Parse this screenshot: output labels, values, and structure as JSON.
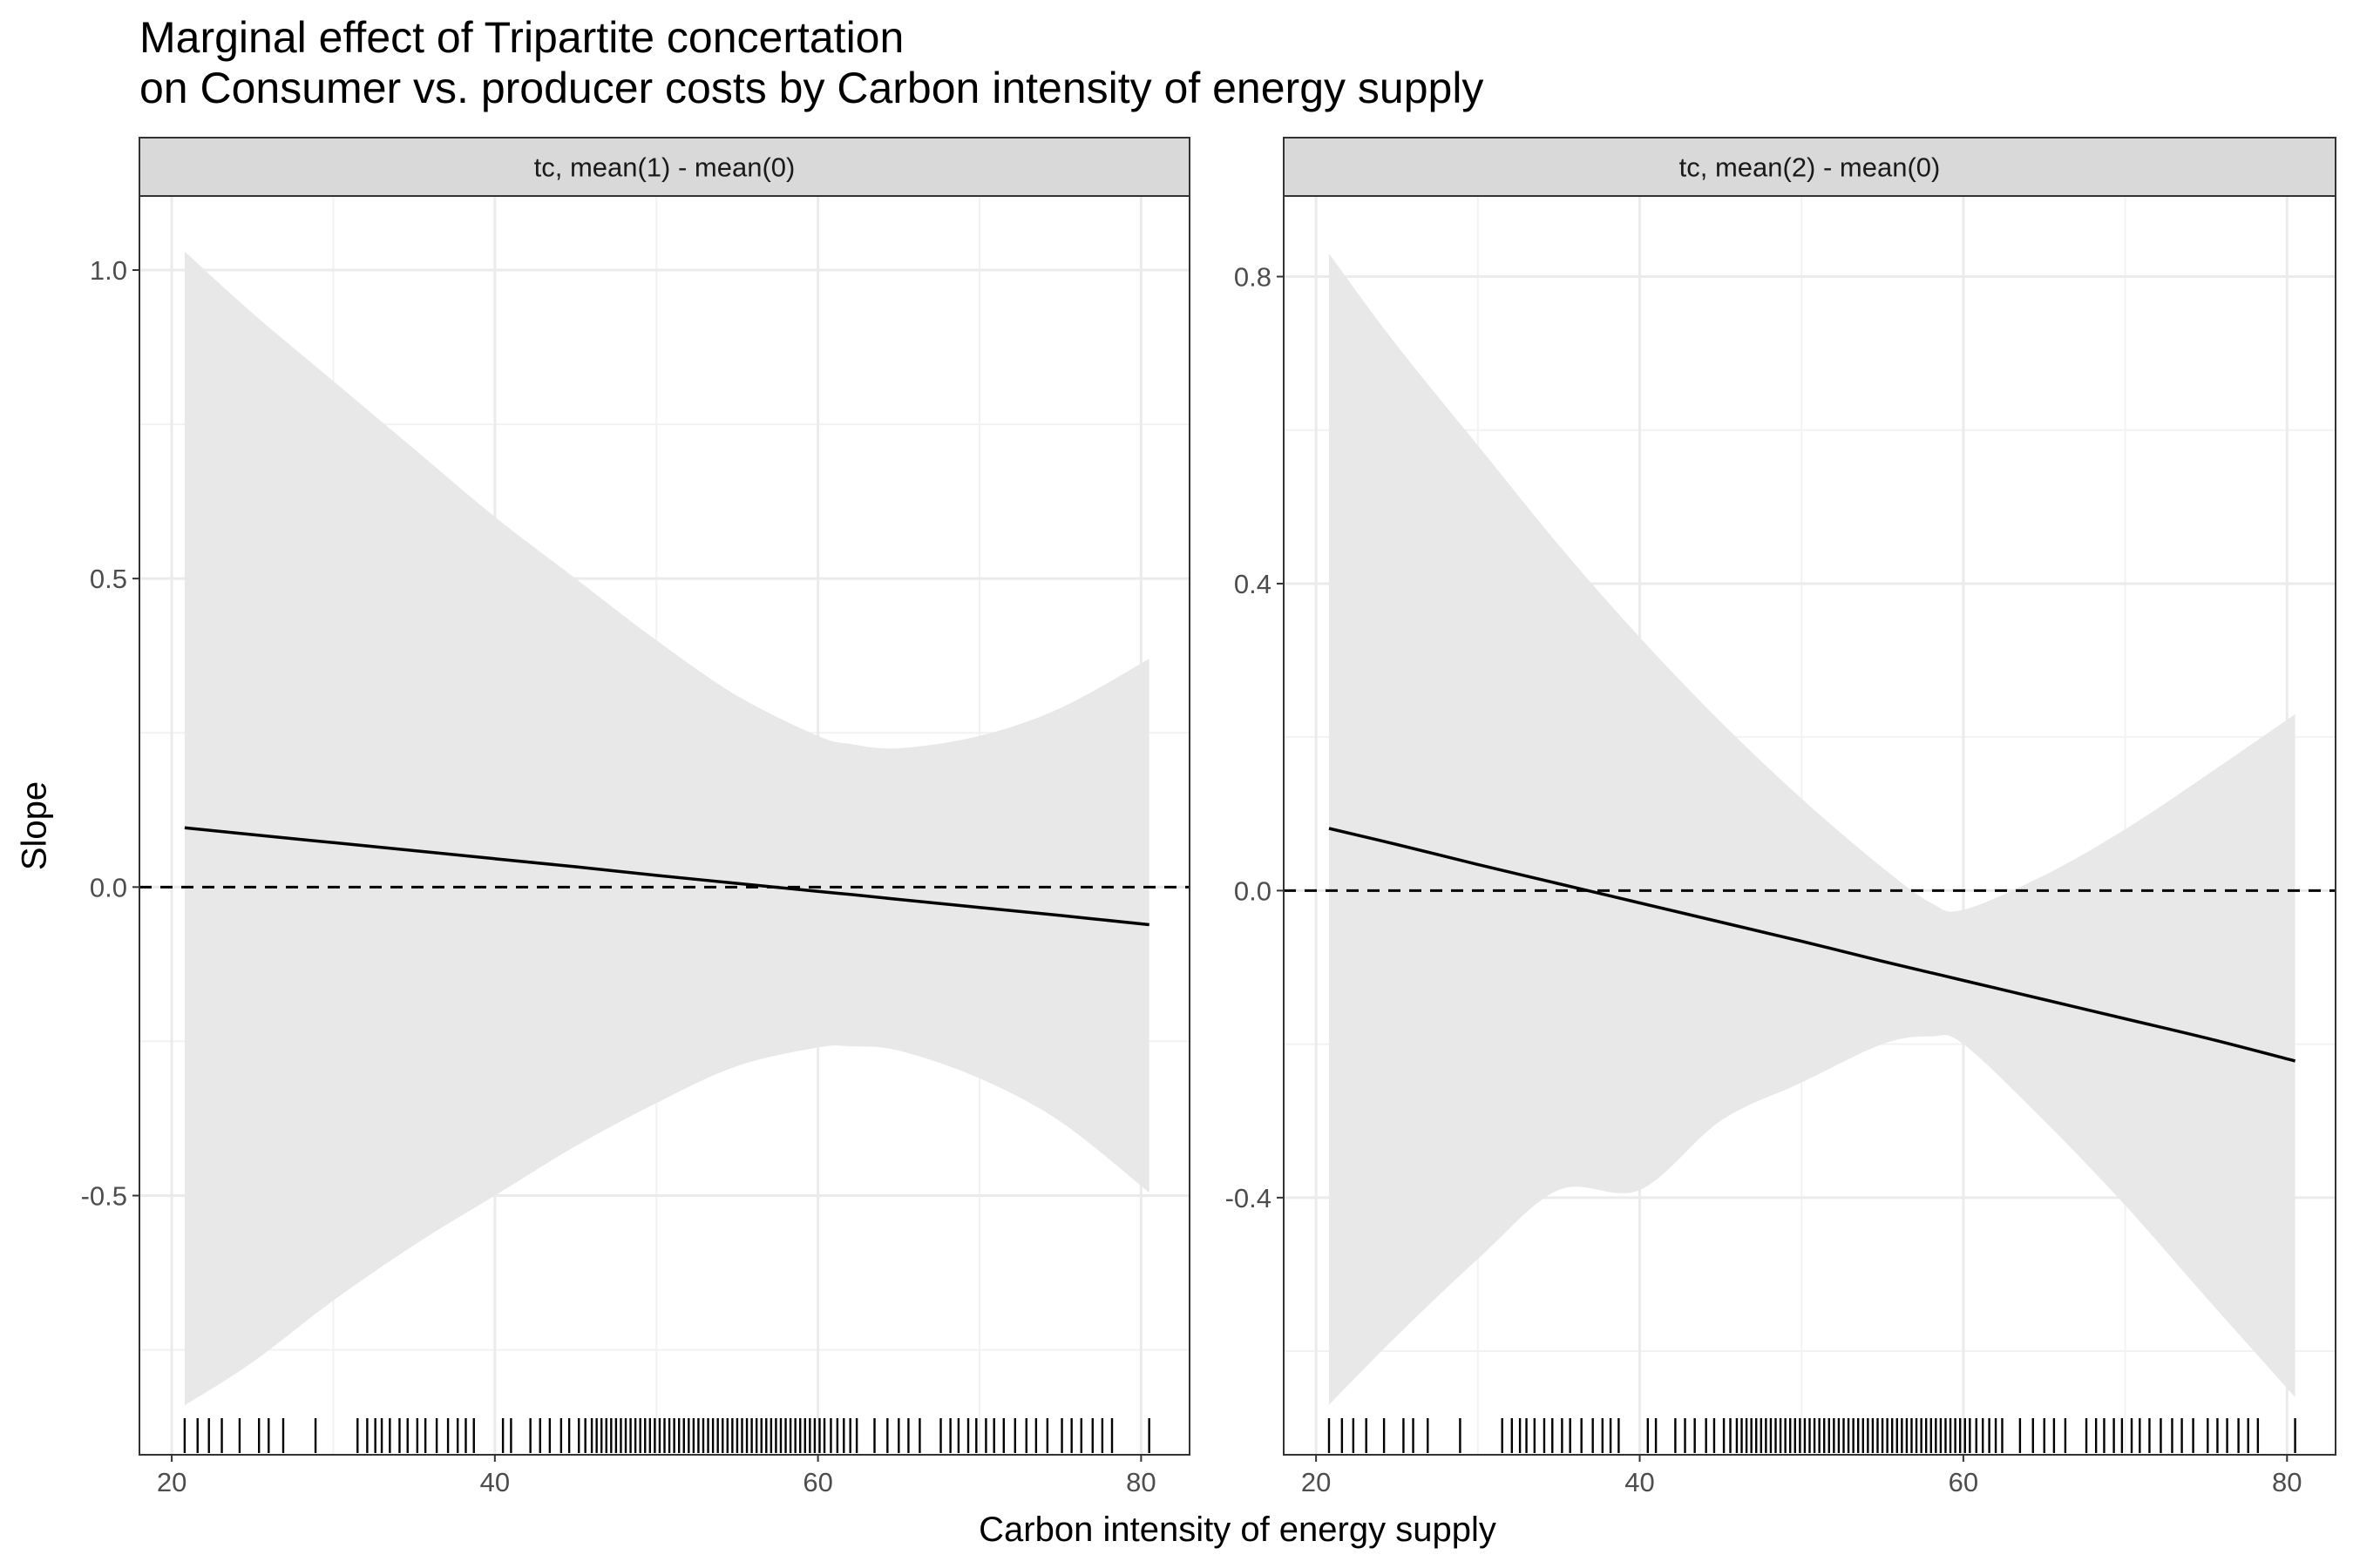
{
  "title": "Marginal effect of Tripartite concertation",
  "subtitle": "on Consumer vs. producer costs by Carbon intensity of energy supply",
  "chart_data": {
    "type": "line",
    "xlabel": "Carbon intensity of energy supply",
    "ylabel": "Slope",
    "facets": [
      {
        "strip_label": "tc, mean(1) - mean(0)",
        "xlim": [
          18,
          83
        ],
        "ylim": [
          -0.92,
          1.12
        ],
        "xticks": [
          20,
          40,
          60,
          80
        ],
        "xtick_labels": [
          "20",
          "40",
          "60",
          "80"
        ],
        "yticks": [
          -0.5,
          0.0,
          0.5,
          1.0
        ],
        "ytick_labels": [
          "-0.5",
          "0.0",
          "0.5",
          "1.0"
        ],
        "reference_line_y": 0,
        "x": [
          20.8,
          25,
          30,
          35,
          40,
          45,
          50,
          55,
          60,
          62,
          65,
          70,
          75,
          80.5
        ],
        "estimate": [
          0.096,
          0.085,
          0.072,
          0.059,
          0.046,
          0.033,
          0.019,
          0.006,
          -0.007,
          -0.012,
          -0.02,
          -0.033,
          -0.046,
          -0.061
        ],
        "ci_upper": [
          1.03,
          0.93,
          0.82,
          0.71,
          0.6,
          0.5,
          0.4,
          0.31,
          0.245,
          0.232,
          0.225,
          0.245,
          0.29,
          0.37
        ],
        "ci_lower": [
          -0.84,
          -0.77,
          -0.67,
          -0.58,
          -0.5,
          -0.42,
          -0.35,
          -0.29,
          -0.26,
          -0.258,
          -0.265,
          -0.31,
          -0.38,
          -0.495
        ]
      },
      {
        "strip_label": "tc, mean(2) - mean(0)",
        "xlim": [
          18,
          83
        ],
        "ylim": [
          -0.735,
          0.905
        ],
        "xticks": [
          20,
          40,
          60,
          80
        ],
        "xtick_labels": [
          "20",
          "40",
          "60",
          "80"
        ],
        "yticks": [
          -0.4,
          0.0,
          0.4,
          0.8
        ],
        "ytick_labels": [
          "-0.4",
          "0.0",
          "0.4",
          "0.8"
        ],
        "reference_line_y": 0,
        "x": [
          20.8,
          25,
          30,
          35,
          40,
          45,
          50,
          55,
          58,
          60,
          65,
          70,
          75,
          80.5
        ],
        "estimate": [
          0.081,
          0.06,
          0.034,
          0.009,
          -0.016,
          -0.041,
          -0.066,
          -0.092,
          -0.107,
          -0.117,
          -0.142,
          -0.167,
          -0.192,
          -0.222
        ],
        "ci_upper": [
          0.83,
          0.71,
          0.58,
          0.45,
          0.33,
          0.22,
          0.12,
          0.03,
          -0.016,
          -0.025,
          0.02,
          0.08,
          0.15,
          0.23
        ],
        "ci_lower": [
          -0.67,
          -0.58,
          -0.48,
          -0.39,
          -0.39,
          -0.3,
          -0.25,
          -0.2,
          -0.19,
          -0.2,
          -0.3,
          -0.41,
          -0.53,
          -0.66
        ]
      }
    ],
    "rug_x": [
      20.8,
      21.6,
      22.3,
      23.1,
      24.2,
      25.4,
      26.0,
      26.9,
      28.9,
      31.5,
      32.1,
      32.6,
      33.0,
      33.5,
      34.1,
      34.6,
      35.2,
      35.7,
      36.4,
      37.1,
      37.7,
      38.2,
      38.7,
      40.5,
      41.0,
      42.2,
      42.8,
      43.4,
      44.1,
      44.6,
      45.2,
      45.6,
      46.0,
      46.3,
      46.6,
      46.9,
      47.2,
      47.5,
      47.8,
      48.1,
      48.4,
      48.7,
      49.0,
      49.3,
      49.6,
      49.9,
      50.2,
      50.5,
      50.8,
      51.1,
      51.4,
      51.7,
      52.0,
      52.3,
      52.6,
      52.9,
      53.2,
      53.5,
      53.8,
      54.1,
      54.4,
      54.7,
      55.0,
      55.3,
      55.6,
      55.9,
      56.2,
      56.5,
      56.8,
      57.1,
      57.4,
      57.7,
      58.0,
      58.3,
      58.6,
      58.9,
      59.2,
      59.5,
      59.8,
      60.1,
      60.4,
      60.8,
      61.2,
      61.6,
      62.0,
      62.4,
      63.5,
      64.3,
      65.0,
      65.6,
      66.3,
      67.6,
      68.2,
      68.7,
      69.3,
      69.8,
      70.4,
      70.9,
      71.5,
      72.2,
      72.9,
      73.5,
      74.2,
      75.1,
      75.7,
      76.3,
      77.0,
      77.6,
      78.2,
      80.5
    ]
  }
}
